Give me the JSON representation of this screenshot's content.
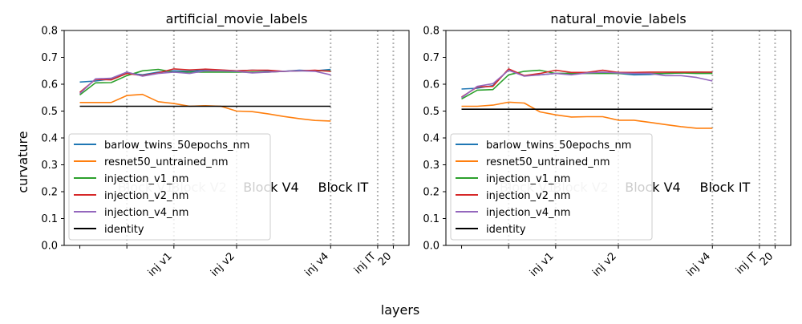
{
  "figure": {
    "xlabel": "layers",
    "ylabel": "curvature"
  },
  "chart_data": [
    {
      "type": "line",
      "title": "artificial_movie_labels",
      "ylim": [
        0.0,
        0.8
      ],
      "yticks": [
        "0.0",
        "0.1",
        "0.2",
        "0.3",
        "0.4",
        "0.5",
        "0.6",
        "0.7",
        "0.8"
      ],
      "xlim": [
        -1,
        21
      ],
      "xticks": [
        {
          "x": 0,
          "label": ""
        },
        {
          "x": 3,
          "label": ""
        },
        {
          "x": 6,
          "label": "inj v1"
        },
        {
          "x": 10,
          "label": "inj v2"
        },
        {
          "x": 16,
          "label": "inj v4"
        },
        {
          "x": 19,
          "label": "inj IT"
        },
        {
          "x": 20,
          "label": "20"
        }
      ],
      "vlines": [
        3,
        6,
        10,
        16,
        19,
        20
      ],
      "block_labels": [
        {
          "x": 4.2,
          "label": "Block V1",
          "faded": true
        },
        {
          "x": 7.6,
          "label": "Block V2",
          "faded": true
        },
        {
          "x": 12.2,
          "label": "Block V4",
          "faded": false
        },
        {
          "x": 16.8,
          "label": "Block IT",
          "faded": false
        }
      ],
      "legend": {
        "position": "lower-left"
      },
      "series": [
        {
          "name": "barlow_twins_50epochs_nm",
          "color": "#1f77b4",
          "x": [
            0,
            1,
            2,
            3,
            4,
            5,
            6,
            7,
            8,
            9,
            10,
            11,
            12,
            13,
            14,
            15,
            16
          ],
          "y": [
            0.608,
            0.612,
            0.62,
            0.642,
            0.635,
            0.645,
            0.65,
            0.648,
            0.652,
            0.652,
            0.65,
            0.652,
            0.65,
            0.648,
            0.652,
            0.65,
            0.655
          ]
        },
        {
          "name": "resnet50_untrained_nm",
          "color": "#ff7f0e",
          "x": [
            0,
            1,
            2,
            3,
            4,
            5,
            6,
            7,
            8,
            9,
            10,
            11,
            12,
            13,
            14,
            15,
            16
          ],
          "y": [
            0.532,
            0.532,
            0.532,
            0.558,
            0.562,
            0.535,
            0.528,
            0.518,
            0.52,
            0.518,
            0.5,
            0.498,
            0.49,
            0.48,
            0.472,
            0.465,
            0.463
          ]
        },
        {
          "name": "injection_v1_nm",
          "color": "#2ca02c",
          "x": [
            0,
            1,
            2,
            3,
            4,
            5,
            6,
            7,
            8,
            9,
            10,
            11,
            12,
            13,
            14,
            15,
            16
          ],
          "y": [
            0.56,
            0.605,
            0.606,
            0.632,
            0.65,
            0.655,
            0.645,
            0.645,
            0.645,
            0.645,
            0.645,
            0.645,
            0.645,
            0.648,
            0.65,
            0.65,
            0.65
          ]
        },
        {
          "name": "injection_v2_nm",
          "color": "#d62728",
          "x": [
            0,
            1,
            2,
            3,
            4,
            5,
            6,
            7,
            8,
            9,
            10,
            11,
            12,
            13,
            14,
            15,
            16
          ],
          "y": [
            0.57,
            0.618,
            0.616,
            0.64,
            0.632,
            0.642,
            0.657,
            0.653,
            0.656,
            0.653,
            0.65,
            0.652,
            0.652,
            0.648,
            0.65,
            0.652,
            0.648
          ]
        },
        {
          "name": "injection_v4_nm",
          "color": "#9467bd",
          "x": [
            0,
            1,
            2,
            3,
            4,
            5,
            6,
            7,
            8,
            9,
            10,
            11,
            12,
            13,
            14,
            15,
            16
          ],
          "y": [
            0.565,
            0.62,
            0.622,
            0.645,
            0.63,
            0.64,
            0.645,
            0.64,
            0.65,
            0.65,
            0.648,
            0.642,
            0.645,
            0.648,
            0.65,
            0.648,
            0.635
          ]
        },
        {
          "name": "identity",
          "color": "#000000",
          "x": [
            0,
            16
          ],
          "y": [
            0.518,
            0.518
          ]
        }
      ]
    },
    {
      "type": "line",
      "title": "natural_movie_labels",
      "ylim": [
        0.0,
        0.8
      ],
      "yticks": [
        "0.0",
        "0.1",
        "0.2",
        "0.3",
        "0.4",
        "0.5",
        "0.6",
        "0.7",
        "0.8"
      ],
      "xlim": [
        -1,
        21
      ],
      "xticks": [
        {
          "x": 0,
          "label": ""
        },
        {
          "x": 3,
          "label": ""
        },
        {
          "x": 6,
          "label": "inj v1"
        },
        {
          "x": 10,
          "label": "inj v2"
        },
        {
          "x": 16,
          "label": "inj v4"
        },
        {
          "x": 19,
          "label": "inj IT"
        },
        {
          "x": 20,
          "label": "20"
        }
      ],
      "vlines": [
        3,
        6,
        10,
        16,
        19,
        20
      ],
      "block_labels": [
        {
          "x": 4.2,
          "label": "Block V1",
          "faded": true
        },
        {
          "x": 7.6,
          "label": "Block V2",
          "faded": true
        },
        {
          "x": 12.2,
          "label": "Block V4",
          "faded": false
        },
        {
          "x": 16.8,
          "label": "Block IT",
          "faded": false
        }
      ],
      "legend": {
        "position": "lower-left"
      },
      "series": [
        {
          "name": "barlow_twins_50epochs_nm",
          "color": "#1f77b4",
          "x": [
            0,
            1,
            2,
            3,
            4,
            5,
            6,
            7,
            8,
            9,
            10,
            11,
            12,
            13,
            14,
            15,
            16
          ],
          "y": [
            0.582,
            0.585,
            0.595,
            0.655,
            0.632,
            0.635,
            0.64,
            0.64,
            0.642,
            0.642,
            0.64,
            0.635,
            0.636,
            0.64,
            0.642,
            0.645,
            0.643
          ]
        },
        {
          "name": "resnet50_untrained_nm",
          "color": "#ff7f0e",
          "x": [
            0,
            1,
            2,
            3,
            4,
            5,
            6,
            7,
            8,
            9,
            10,
            11,
            12,
            13,
            14,
            15,
            16
          ],
          "y": [
            0.518,
            0.518,
            0.522,
            0.533,
            0.53,
            0.497,
            0.486,
            0.478,
            0.479,
            0.479,
            0.466,
            0.466,
            0.458,
            0.45,
            0.442,
            0.436,
            0.436
          ]
        },
        {
          "name": "injection_v1_nm",
          "color": "#2ca02c",
          "x": [
            0,
            1,
            2,
            3,
            4,
            5,
            6,
            7,
            8,
            9,
            10,
            11,
            12,
            13,
            14,
            15,
            16
          ],
          "y": [
            0.545,
            0.578,
            0.58,
            0.635,
            0.648,
            0.652,
            0.64,
            0.64,
            0.64,
            0.64,
            0.64,
            0.64,
            0.64,
            0.64,
            0.642,
            0.64,
            0.64
          ]
        },
        {
          "name": "injection_v2_nm",
          "color": "#d62728",
          "x": [
            0,
            1,
            2,
            3,
            4,
            5,
            6,
            7,
            8,
            9,
            10,
            11,
            12,
            13,
            14,
            15,
            16
          ],
          "y": [
            0.552,
            0.59,
            0.592,
            0.657,
            0.632,
            0.64,
            0.652,
            0.644,
            0.644,
            0.652,
            0.644,
            0.644,
            0.645,
            0.645,
            0.645,
            0.645,
            0.645
          ]
        },
        {
          "name": "injection_v4_nm",
          "color": "#9467bd",
          "x": [
            0,
            1,
            2,
            3,
            4,
            5,
            6,
            7,
            8,
            9,
            10,
            11,
            12,
            13,
            14,
            15,
            16
          ],
          "y": [
            0.55,
            0.592,
            0.602,
            0.652,
            0.63,
            0.635,
            0.64,
            0.635,
            0.642,
            0.645,
            0.642,
            0.64,
            0.64,
            0.632,
            0.632,
            0.625,
            0.612
          ]
        },
        {
          "name": "identity",
          "color": "#000000",
          "x": [
            0,
            16
          ],
          "y": [
            0.507,
            0.507
          ]
        }
      ]
    }
  ]
}
